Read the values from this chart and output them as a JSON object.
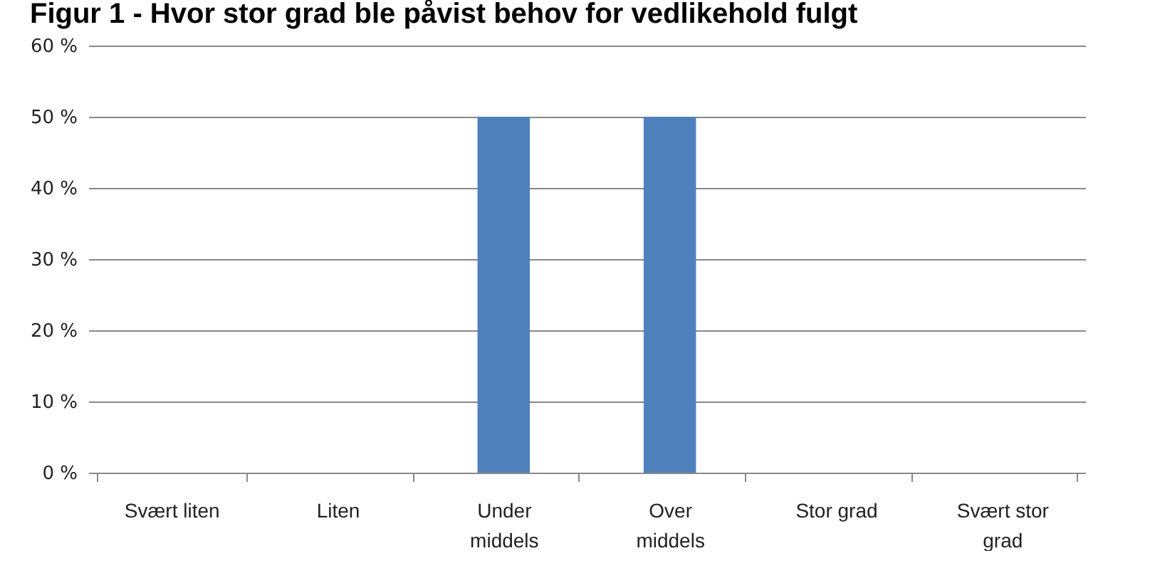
{
  "chart_data": {
    "type": "bar",
    "title": "Figur 1 - Hvor stor grad ble påvist behov for vedlikehold fulgt",
    "categories": [
      "Svært liten",
      "Liten",
      "Under\nmiddels",
      "Over\nmiddels",
      "Stor grad",
      "Svært stor\ngrad"
    ],
    "values": [
      0,
      0,
      50,
      50,
      0,
      0
    ],
    "color": "#4f81bd",
    "ylim": [
      0,
      60
    ],
    "yticks": [
      {
        "value": 0,
        "label": "0 %"
      },
      {
        "value": 10,
        "label": "10 %"
      },
      {
        "value": 20,
        "label": "20 %"
      },
      {
        "value": 30,
        "label": "30 %"
      },
      {
        "value": 40,
        "label": "40 %"
      },
      {
        "value": 50,
        "label": "50 %"
      },
      {
        "value": 60,
        "label": "60 %"
      }
    ],
    "grid": "y"
  }
}
